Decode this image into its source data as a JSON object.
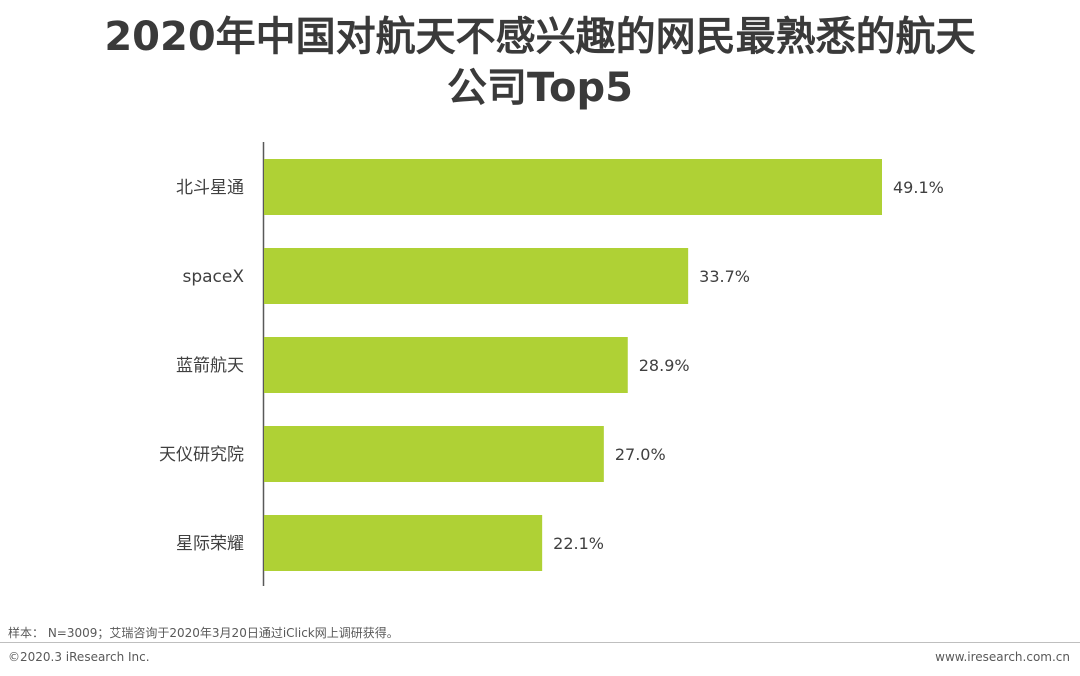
{
  "chart_data": {
    "type": "bar",
    "orientation": "horizontal",
    "title": "2020年中国对航天不感兴趣的网民最熟悉的航天公司Top5",
    "categories": [
      "北斗星通",
      "spaceX",
      "蓝箭航天",
      "天仪研究院",
      "星际荣耀"
    ],
    "values": [
      49.1,
      33.7,
      28.9,
      27.0,
      22.1
    ],
    "value_labels": [
      "49.1%",
      "33.7%",
      "28.9%",
      "27.0%",
      "22.1%"
    ],
    "unit": "%",
    "bar_color": "#afd135",
    "grid": false,
    "legend": "none"
  },
  "footer": {
    "note": "样本： N=3009；艾瑞咨询于2020年3月20日通过iClick网上调研获得。",
    "copyright": "©2020.3 iResearch Inc.",
    "site": "www.iresearch.com.cn"
  }
}
